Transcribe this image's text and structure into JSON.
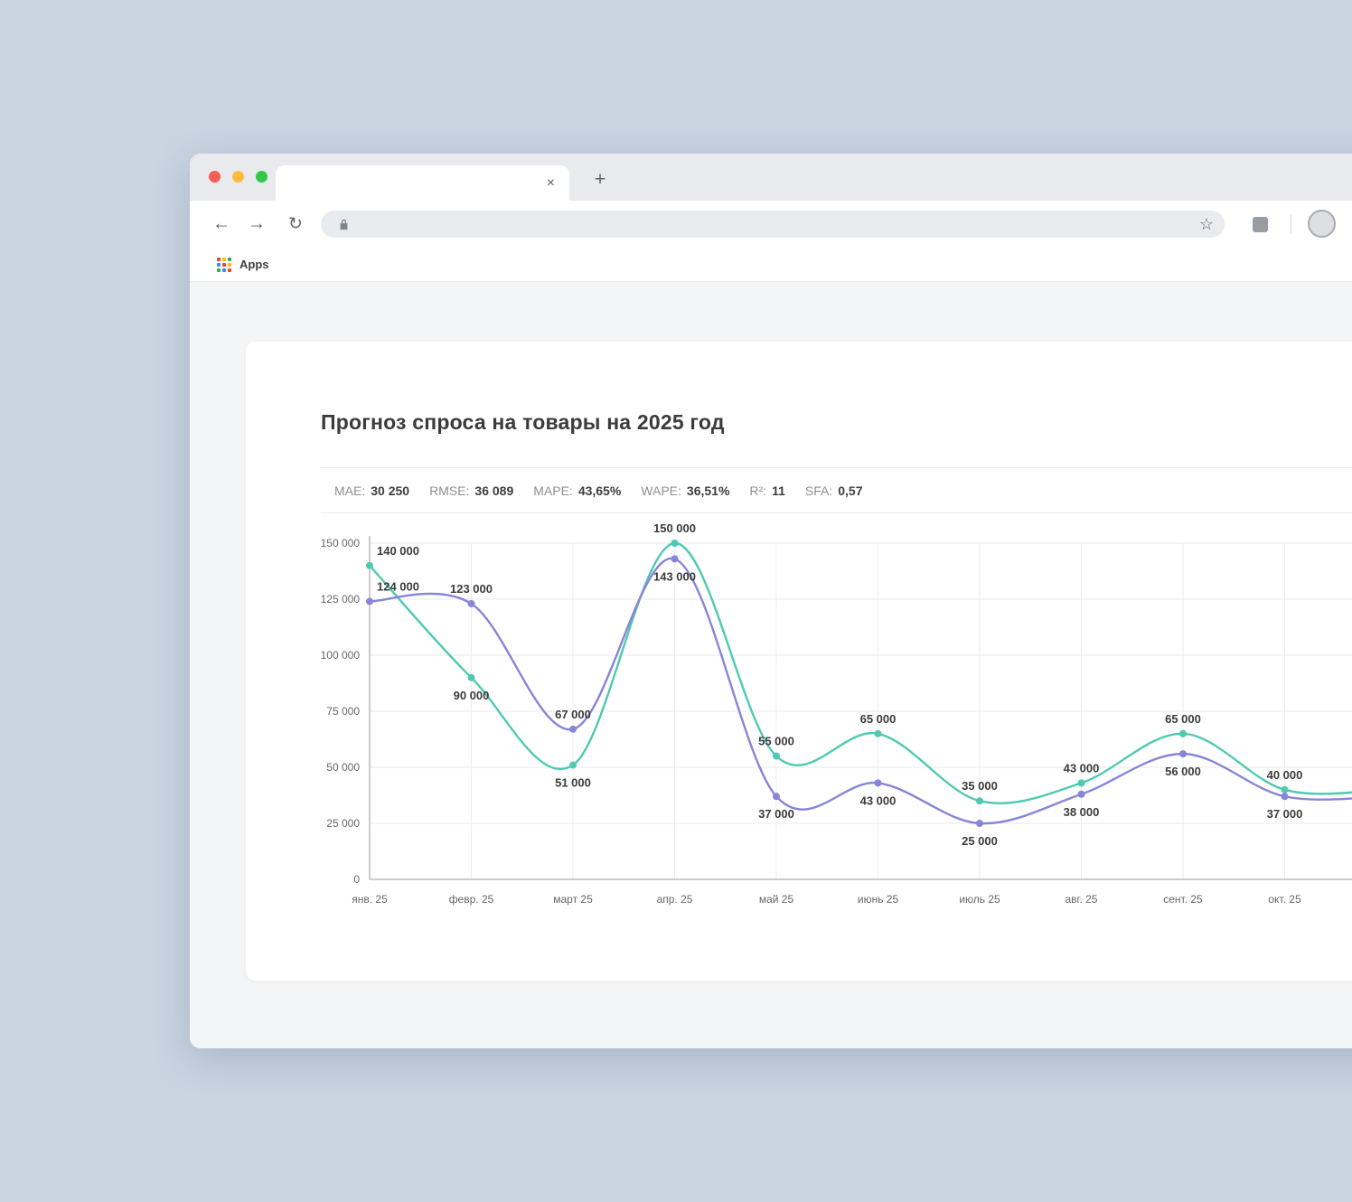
{
  "browser": {
    "tab": {
      "title": "",
      "close_glyph": "×"
    },
    "new_tab_glyph": "+",
    "nav": {
      "back_glyph": "←",
      "forward_glyph": "→",
      "reload_glyph": "↻"
    },
    "address": {
      "url": ""
    },
    "bookmarks_bar": {
      "apps_label": "Apps"
    }
  },
  "page": {
    "title": "Прогноз спроса на товары на 2025 год",
    "metrics": [
      {
        "label": "MAE:",
        "value": "30 250"
      },
      {
        "label": "RMSE:",
        "value": "36 089"
      },
      {
        "label": "MAPE:",
        "value": "43,65%"
      },
      {
        "label": "WAPE:",
        "value": "36,51%"
      },
      {
        "label": "R²:",
        "value": "11"
      },
      {
        "label": "SFA:",
        "value": "0,57"
      }
    ]
  },
  "chart_data": {
    "type": "line",
    "title": "Прогноз спроса на товары на 2025 год",
    "categories": [
      "янв. 25",
      "февр. 25",
      "март 25",
      "апр. 25",
      "май 25",
      "июнь 25",
      "июль 25",
      "авг. 25",
      "сент. 25",
      "окт. 25"
    ],
    "series": [
      {
        "name": "green",
        "color": "#4fc9b1",
        "values": [
          140000,
          90000,
          51000,
          150000,
          55000,
          65000,
          35000,
          43000,
          65000,
          40000
        ]
      },
      {
        "name": "purple",
        "color": "#8884d8",
        "values": [
          124000,
          123000,
          67000,
          143000,
          37000,
          43000,
          25000,
          38000,
          56000,
          37000
        ]
      }
    ],
    "xlabel": "",
    "ylabel": "",
    "ylim": [
      0,
      150000
    ],
    "yticks": [
      0,
      25000,
      50000,
      75000,
      100000,
      125000,
      150000
    ],
    "grid": true,
    "legend": false,
    "point_labels": true,
    "lines_extend_beyond_right_edge": true
  }
}
